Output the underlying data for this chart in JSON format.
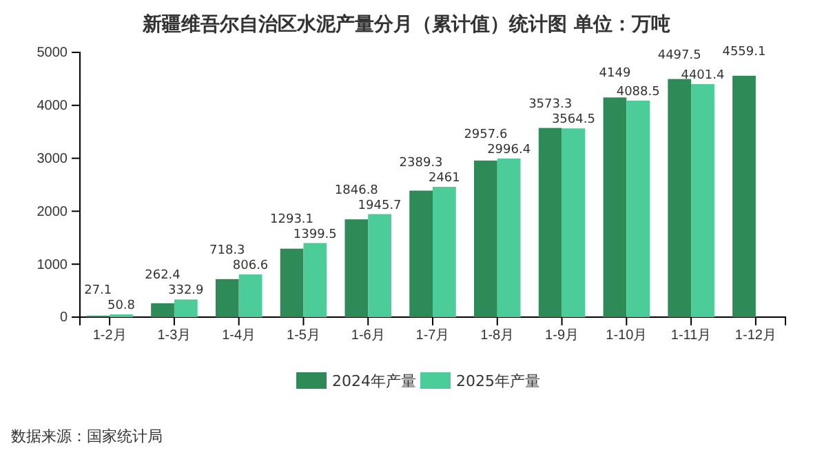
{
  "chart_data": {
    "type": "bar",
    "title": "新疆维吾尔自治区水泥产量分月（累计值）统计图 单位：万吨",
    "categories": [
      "1-2月",
      "1-3月",
      "1-4月",
      "1-5月",
      "1-6月",
      "1-7月",
      "1-8月",
      "1-9月",
      "1-10月",
      "1-11月",
      "1-12月"
    ],
    "series": [
      {
        "name": "2024年产量",
        "color": "#2e8b57",
        "values": [
          27.1,
          262.4,
          718.3,
          1293.1,
          1846.8,
          2389.3,
          2957.6,
          3573.3,
          4149,
          4497.5,
          4559.1
        ]
      },
      {
        "name": "2025年产量",
        "color": "#4ccc98",
        "values": [
          50.8,
          332.9,
          806.6,
          1399.5,
          1945.7,
          2461,
          2996.4,
          3564.5,
          4088.5,
          4401.4,
          null
        ]
      }
    ],
    "ylim": [
      0,
      5000
    ],
    "yticks": [
      0,
      1000,
      2000,
      3000,
      4000,
      5000
    ],
    "data_labels": true,
    "legend": "bottom",
    "annotations": [
      "数据来源：国家统计局"
    ]
  }
}
